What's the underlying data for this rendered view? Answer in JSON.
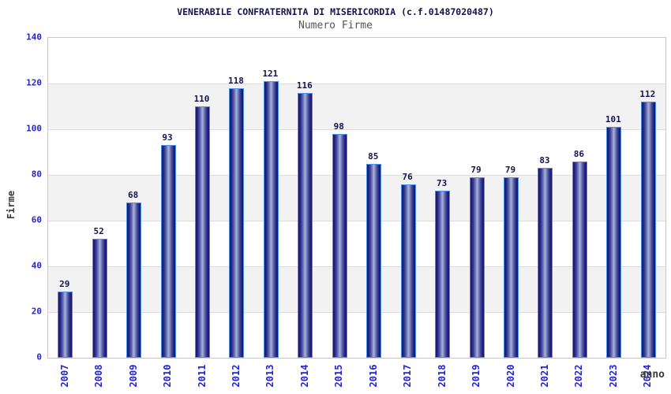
{
  "chart_data": {
    "type": "bar",
    "title": "VENERABILE CONFRATERNITA DI MISERICORDIA (c.f.01487020487)",
    "subtitle": "Numero Firme",
    "xlabel": "anno",
    "ylabel": "Firme",
    "categories": [
      "2007",
      "2008",
      "2009",
      "2010",
      "2011",
      "2012",
      "2013",
      "2014",
      "2015",
      "2016",
      "2017",
      "2018",
      "2019",
      "2020",
      "2021",
      "2022",
      "2023",
      "2024"
    ],
    "values": [
      29,
      52,
      68,
      93,
      110,
      118,
      121,
      116,
      98,
      85,
      76,
      73,
      79,
      79,
      83,
      86,
      101,
      112
    ],
    "ylim": [
      0,
      140
    ],
    "ytick_step": 20,
    "grid": true,
    "legend": "none",
    "layout": {
      "band_stripe_ranges": [
        [
          20,
          40
        ],
        [
          60,
          80
        ],
        [
          100,
          120
        ]
      ],
      "bar_labels_shown": true
    },
    "colors": {
      "bar_dark": "#141470",
      "bar_light": "#a9b1da",
      "bar_border": "#4b93ea",
      "tick_label": "#2424d6",
      "value_label": "#13134d",
      "title": "#13134d",
      "subtitle": "#555555",
      "axis_title": "#3a3a3a",
      "stripe_band": "#f2f2f2",
      "grid_line": "#dcdcdc",
      "plot_border": "#c9c9c9",
      "background": "#ffffff"
    }
  }
}
